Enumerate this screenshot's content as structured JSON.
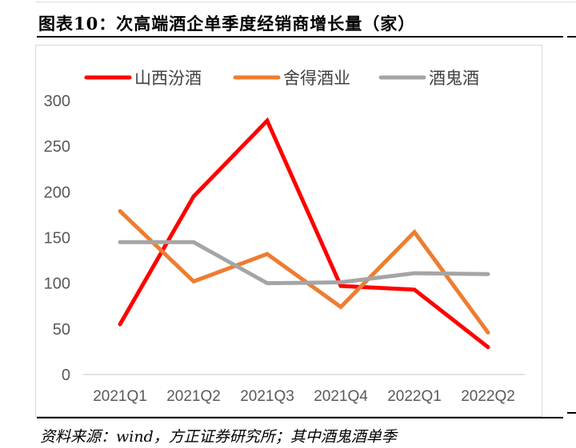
{
  "title": "图表10：次高端酒企单季度经销商增长量（家）",
  "source": "资料来源：wind，方正证券研究所；其中酒鬼酒单季",
  "chart_data": {
    "type": "line",
    "categories": [
      "2021Q1",
      "2021Q2",
      "2021Q3",
      "2021Q4",
      "2022Q1",
      "2022Q2"
    ],
    "series": [
      {
        "name": "山西汾酒",
        "color": "#ff0000",
        "values": [
          55,
          195,
          278,
          97,
          93,
          30
        ]
      },
      {
        "name": "舍得酒业",
        "color": "#ed7d31",
        "values": [
          179,
          102,
          132,
          74,
          156,
          46
        ]
      },
      {
        "name": "酒鬼酒",
        "color": "#a5a5a5",
        "values": [
          145,
          145,
          100,
          101,
          111,
          110
        ]
      }
    ],
    "ylim": [
      0,
      300
    ],
    "yticks": [
      0,
      50,
      100,
      150,
      200,
      250,
      300
    ],
    "grid": false,
    "legend_position": "top"
  }
}
